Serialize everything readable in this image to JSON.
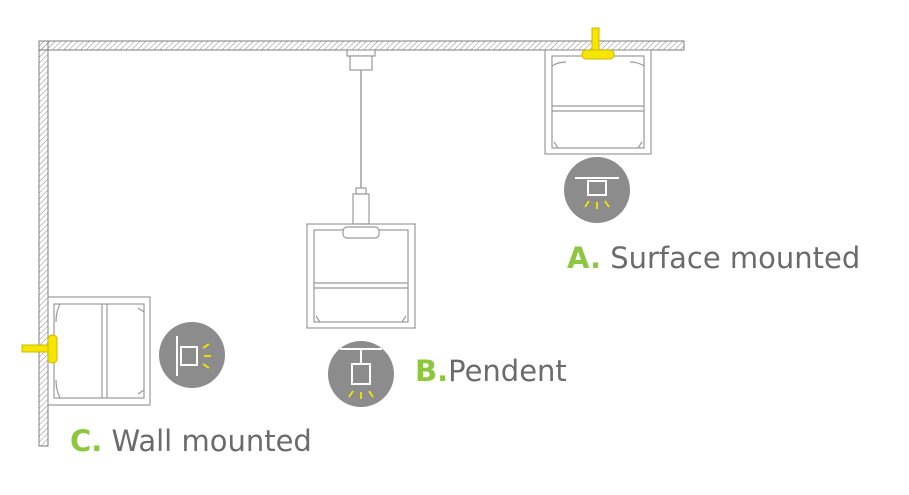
{
  "labels": {
    "a": {
      "letter": "A.",
      "text": " Surface mounted"
    },
    "b": {
      "letter": "B.",
      "text": "Pendent"
    },
    "c": {
      "letter": "C.",
      "text": " Wall mounted"
    }
  },
  "icons": {
    "surface": "surface-mount-icon",
    "pendant": "pendant-mount-icon",
    "wall": "wall-mount-icon"
  },
  "colors": {
    "line": "#7d7d7d",
    "fixture_stroke": "#999999",
    "bracket": "#f6e500",
    "icon_circle": "#8c8c8c",
    "light_rays": "#f6e500",
    "label_letter": "#8dc63f",
    "label_text": "#6b6b6b"
  }
}
